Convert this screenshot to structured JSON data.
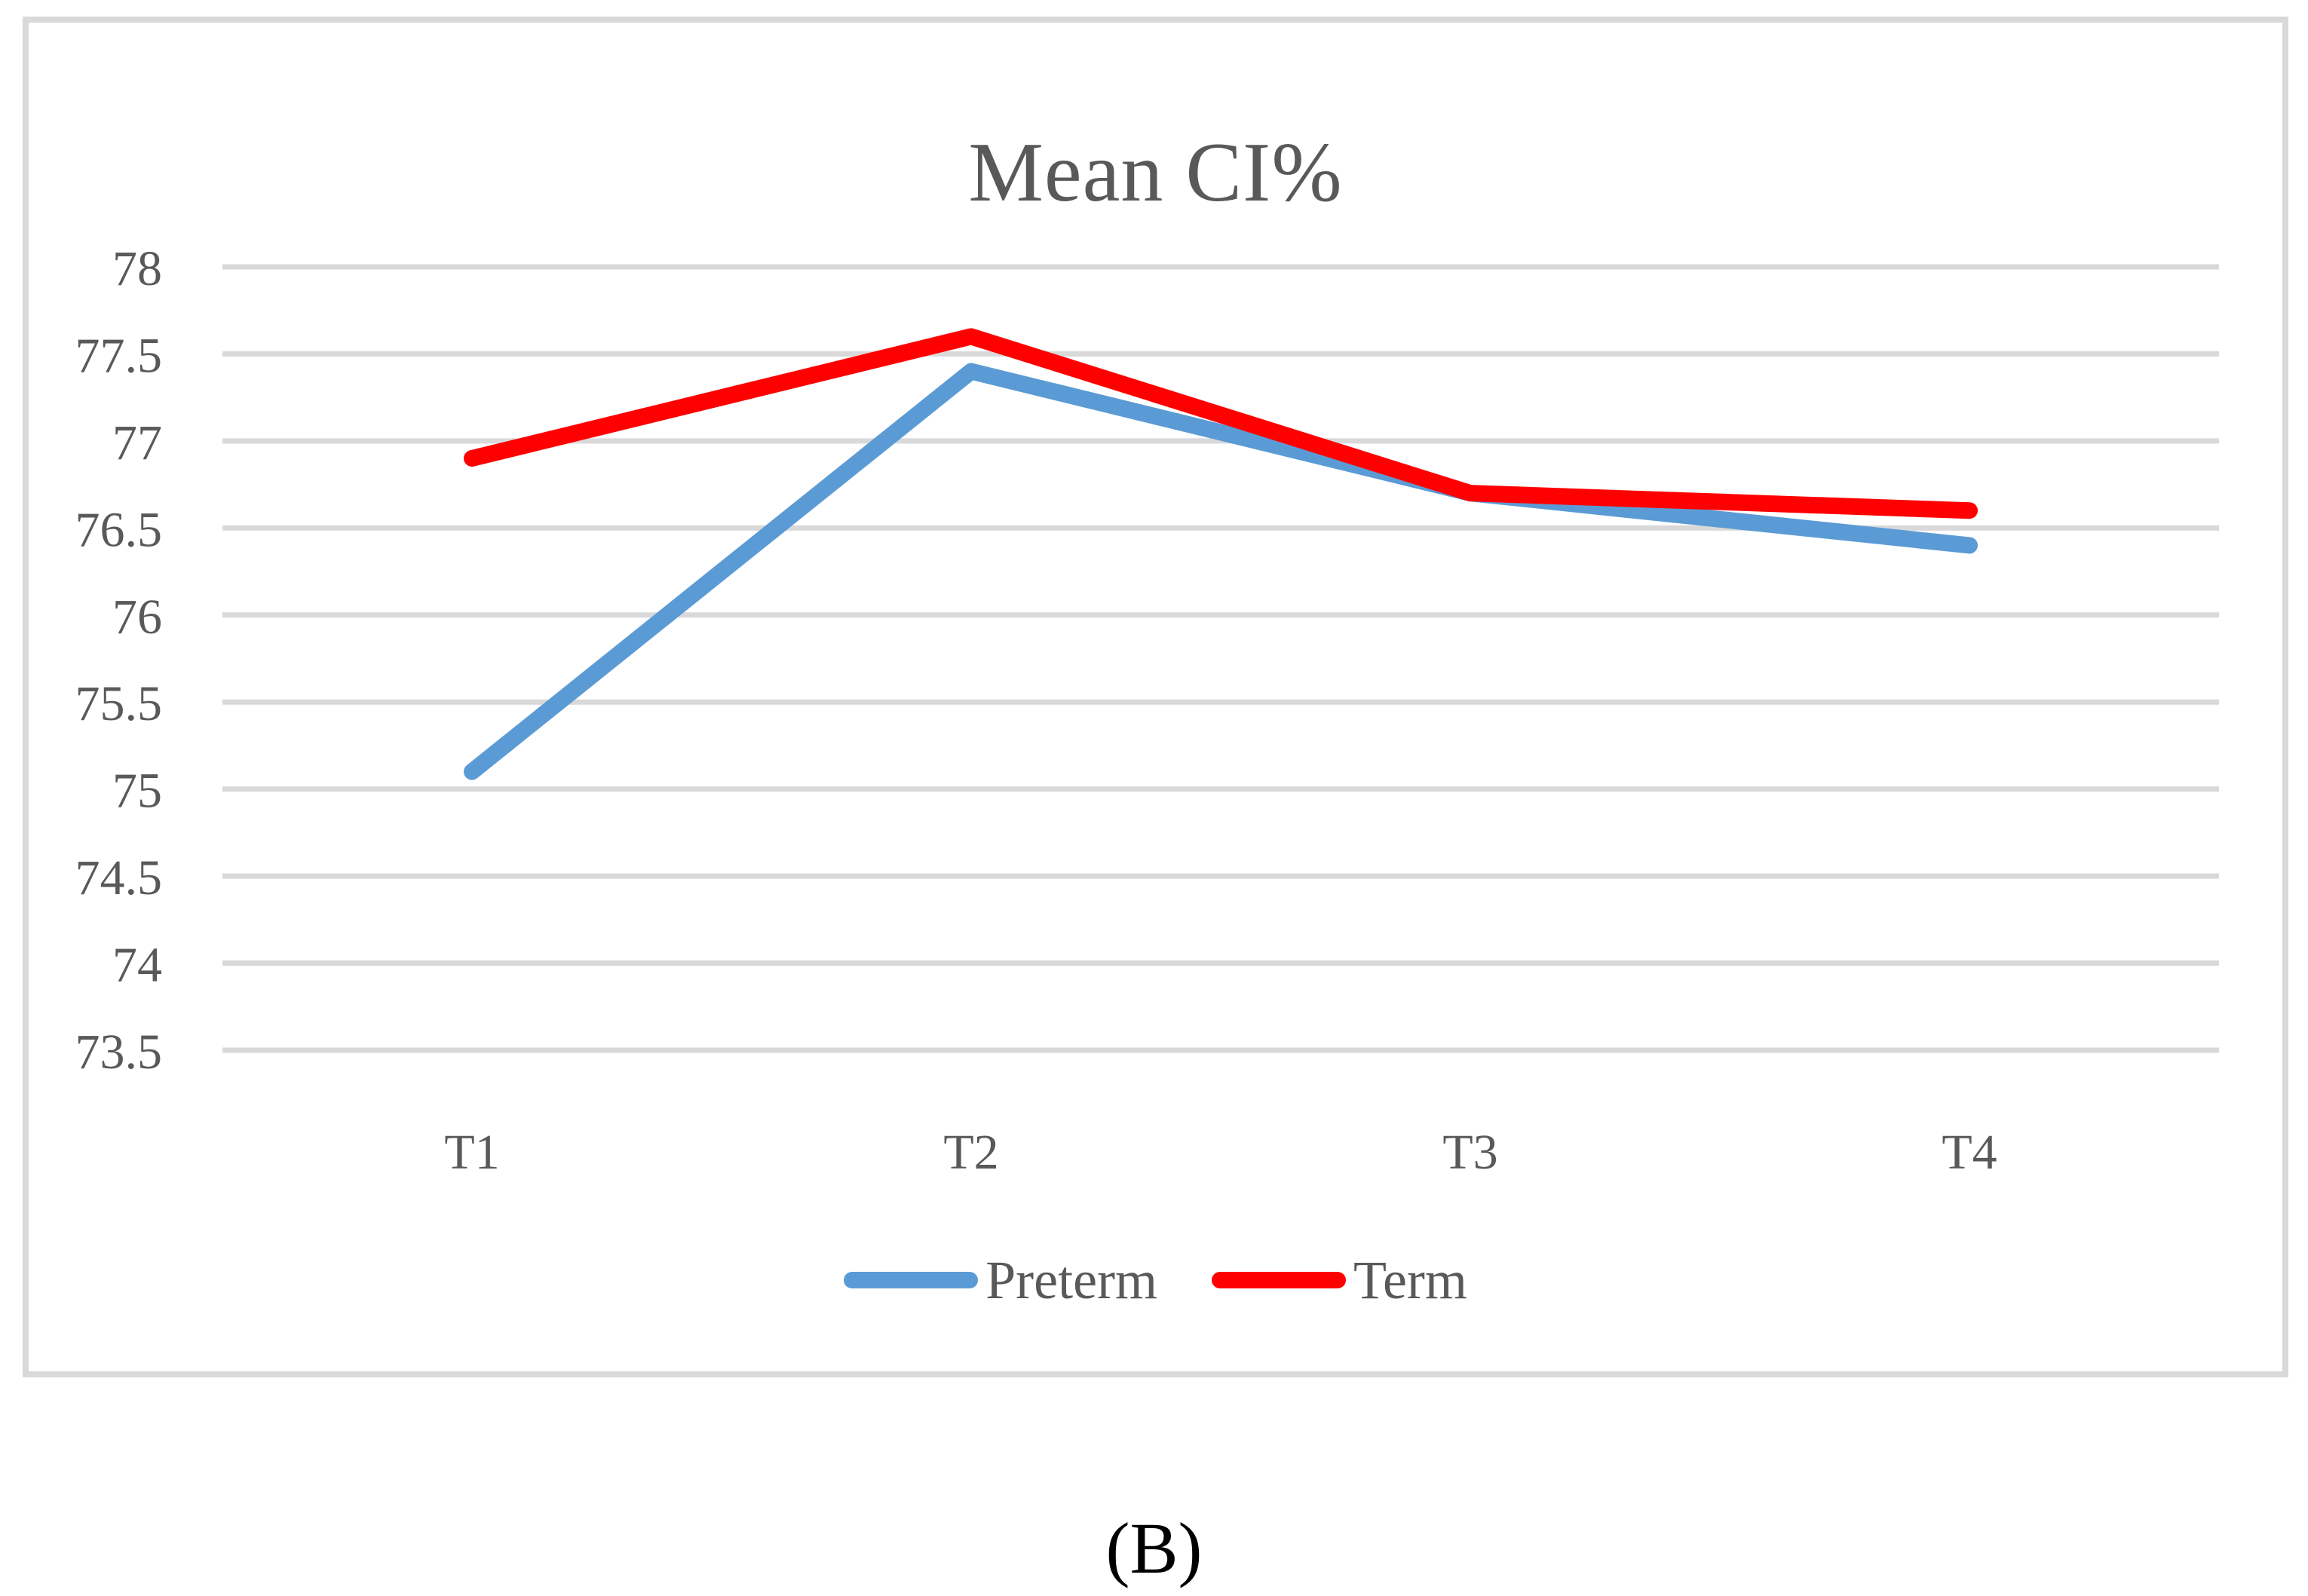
{
  "caption": "(B)",
  "colors": {
    "grid": "#D9D9D9",
    "frame": "#D9D9D9",
    "axis_text": "#595959",
    "title_text": "#595959",
    "caption_text": "#000000"
  },
  "chart_data": {
    "type": "line",
    "title": "Mean CI%",
    "categories": [
      "T1",
      "T2",
      "T3",
      "T4"
    ],
    "series": [
      {
        "name": "Preterm",
        "color": "#5B9BD5",
        "values": [
          75.1,
          77.4,
          76.7,
          76.4
        ]
      },
      {
        "name": "Term",
        "color": "#FF0000",
        "values": [
          76.9,
          77.6,
          76.7,
          76.6
        ]
      }
    ],
    "ylim": [
      73.5,
      78
    ],
    "ytick_step": 0.5,
    "yticks": [
      "78",
      "77.5",
      "77",
      "76.5",
      "76",
      "75.5",
      "75",
      "74.5",
      "74",
      "73.5"
    ],
    "grid": true,
    "legend_position": "bottom"
  }
}
